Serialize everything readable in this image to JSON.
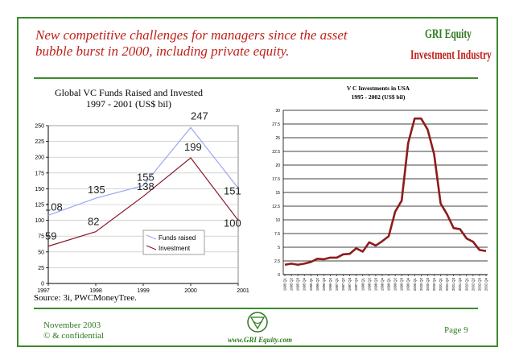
{
  "slide": {
    "title": "New competitive challenges for managers since the asset bubble burst in 2000, including private equity.",
    "logo_line1": "GRI Equity",
    "logo_line2": "Investment Industry",
    "source": "Source: 3i, PWCMoneyTree.",
    "footer_date": "November 2003",
    "footer_conf": "© & confidential",
    "page": "Page 9",
    "url": "www.GRI Equity.com",
    "colors": {
      "green": "#3d8a2a",
      "red": "#c0201a",
      "funds_raised": "#9aa6f2",
      "investment": "#8a1a2a",
      "vc_line": "#8e1b1b"
    }
  },
  "chart_data": [
    {
      "type": "line",
      "title": "Global VC Funds Raised and Invested",
      "subtitle": "1997 - 2001 (US$ bil)",
      "categories": [
        "1997",
        "1998",
        "1999",
        "2000",
        "2001"
      ],
      "ylim": [
        0,
        250
      ],
      "yticks": [
        "0",
        "25",
        "50",
        "75",
        "100",
        "125",
        "150",
        "175",
        "200",
        "225",
        "250"
      ],
      "series": [
        {
          "name": "Funds raised",
          "values": [
            108,
            135,
            155,
            247,
            151
          ],
          "labels": [
            "108",
            "135",
            "155",
            "247",
            "151"
          ]
        },
        {
          "name": "Investment",
          "values": [
            59,
            82,
            138,
            199,
            100
          ],
          "labels": [
            "59",
            "82",
            "138",
            "199",
            "100"
          ]
        }
      ],
      "legend": "lower-right",
      "grid": true
    },
    {
      "type": "line",
      "title": "V C Investments in USA",
      "subtitle": "1995 - 2002 (US$ bil)",
      "ylim": [
        0,
        30
      ],
      "yticks": [
        "0",
        "2.5",
        "5",
        "7.5",
        "10",
        "12.5",
        "15",
        "17.5",
        "20",
        "22.5",
        "25",
        "27.5",
        "30"
      ],
      "x": [
        "1995 Q1",
        "1995 Q2",
        "1995 Q3",
        "1995 Q4",
        "1996 Q1",
        "1996 Q2",
        "1996 Q3",
        "1996 Q4",
        "1997 Q1",
        "1997 Q2",
        "1997 Q3",
        "1997 Q4",
        "1998 Q1",
        "1998 Q2",
        "1998 Q3",
        "1998 Q4",
        "1999 Q1",
        "1999 Q2",
        "1999 Q3",
        "1999 Q4",
        "2000 Q1",
        "2000 Q2",
        "2000 Q3",
        "2000 Q4",
        "2001 Q1",
        "2001 Q2",
        "2001 Q3",
        "2001 Q4",
        "2002 Q1",
        "2002 Q2",
        "2002 Q3",
        "2002 Q4"
      ],
      "values": [
        1.8,
        2.0,
        1.8,
        2.0,
        2.3,
        2.9,
        2.8,
        3.1,
        3.1,
        3.7,
        3.8,
        4.8,
        4.2,
        5.9,
        5.3,
        6.1,
        7.0,
        11.5,
        13.5,
        24.0,
        28.5,
        28.5,
        26.5,
        22.0,
        13.0,
        11.0,
        8.5,
        8.3,
        6.6,
        6.0,
        4.5,
        4.3
      ],
      "grid": true
    }
  ]
}
